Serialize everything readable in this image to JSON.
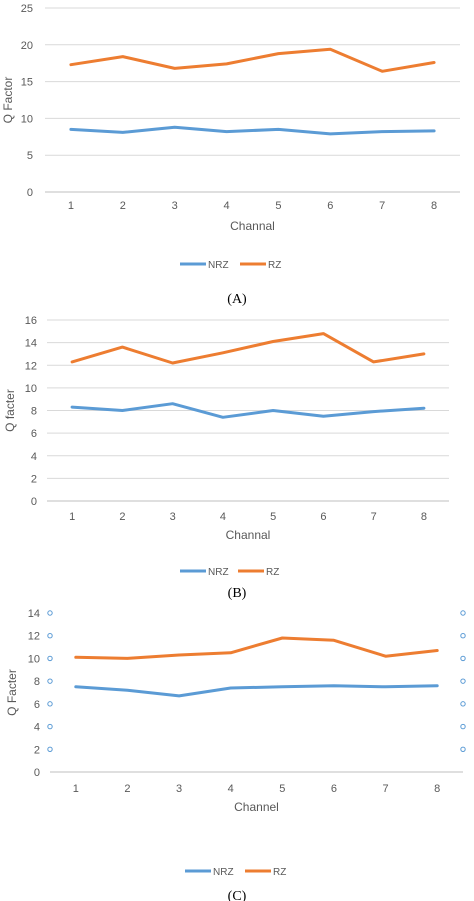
{
  "colors": {
    "NRZ": "#5b9bd5",
    "RZ": "#ed7d31",
    "grid": "#d9d9d9",
    "text": "#595959"
  },
  "chart_data": [
    {
      "type": "line",
      "caption": "(A)",
      "xlabel": "Channal",
      "ylabel": "Q Factor",
      "categories": [
        "1",
        "2",
        "3",
        "4",
        "5",
        "6",
        "7",
        "8"
      ],
      "ylim": [
        0,
        25
      ],
      "yticks": [
        0,
        5,
        10,
        15,
        20,
        25
      ],
      "grid": true,
      "legend": "bottom",
      "series": [
        {
          "name": "NRZ",
          "values": [
            8.5,
            8.1,
            8.8,
            8.2,
            8.5,
            7.9,
            8.2,
            8.3
          ]
        },
        {
          "name": "RZ",
          "values": [
            17.3,
            18.4,
            16.8,
            17.4,
            18.8,
            19.4,
            16.4,
            17.6
          ]
        }
      ]
    },
    {
      "type": "line",
      "caption": "(B)",
      "xlabel": "Channal",
      "ylabel": "Q facter",
      "categories": [
        "1",
        "2",
        "3",
        "4",
        "5",
        "6",
        "7",
        "8"
      ],
      "ylim": [
        0,
        16
      ],
      "yticks": [
        0,
        2,
        4,
        6,
        8,
        10,
        12,
        14,
        16
      ],
      "grid": true,
      "legend": "bottom",
      "series": [
        {
          "name": "NRZ",
          "values": [
            8.3,
            8.0,
            8.6,
            7.4,
            8.0,
            7.5,
            7.9,
            8.2
          ]
        },
        {
          "name": "RZ",
          "values": [
            12.3,
            13.6,
            12.2,
            13.1,
            14.1,
            14.8,
            12.3,
            13.0
          ]
        }
      ]
    },
    {
      "type": "line",
      "caption": "(C)",
      "xlabel": "Channel",
      "ylabel": "Q Facter",
      "categories": [
        "1",
        "2",
        "3",
        "4",
        "5",
        "6",
        "7",
        "8"
      ],
      "ylim": [
        0,
        14
      ],
      "yticks": [
        0,
        2,
        4,
        6,
        8,
        10,
        12,
        14
      ],
      "grid": false,
      "legend": "bottom",
      "series": [
        {
          "name": "NRZ",
          "values": [
            7.5,
            7.2,
            6.7,
            7.4,
            7.5,
            7.6,
            7.5,
            7.6
          ]
        },
        {
          "name": "RZ",
          "values": [
            10.1,
            10.0,
            10.3,
            10.5,
            11.8,
            11.6,
            10.2,
            10.7
          ]
        }
      ]
    }
  ]
}
